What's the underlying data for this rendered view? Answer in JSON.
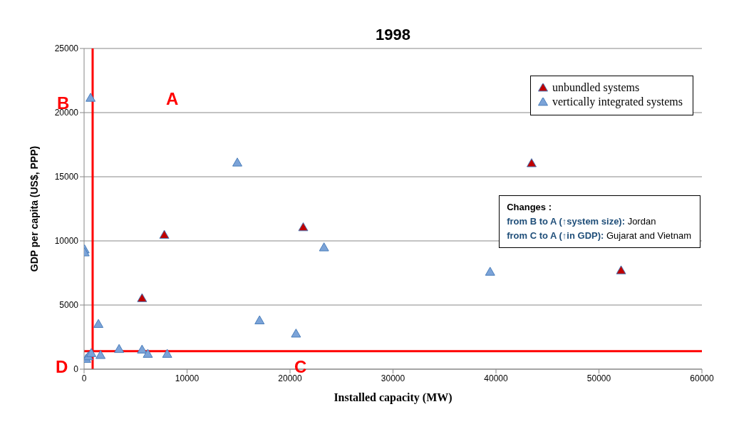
{
  "chart_data": {
    "type": "scatter",
    "title": "1998",
    "xlabel": "Installed capacity (MW)",
    "ylabel": "GDP per capita (US$, PPP)",
    "xlim": [
      0,
      60000
    ],
    "xticks": [
      0,
      10000,
      20000,
      30000,
      40000,
      50000,
      60000
    ],
    "ylim": [
      0,
      25000
    ],
    "yticks": [
      0,
      5000,
      10000,
      15000,
      20000,
      25000
    ],
    "grid": "y",
    "legend": "top right",
    "marker": "triangle",
    "series": [
      {
        "name": "unbundled systems",
        "color": "#c00000",
        "x": [
          5630,
          7790,
          21280,
          43460,
          52150
        ],
        "values": [
          5530,
          10470,
          11060,
          16050,
          7700
        ]
      },
      {
        "name": "vertically integrated systems",
        "color": "#7ba3d8",
        "x": [
          630,
          50,
          50,
          1390,
          200,
          400,
          700,
          1600,
          3400,
          5630,
          6190,
          8070,
          14880,
          17040,
          20580,
          23300,
          39430
        ],
        "values": [
          21150,
          9330,
          9100,
          3520,
          800,
          1000,
          1250,
          1100,
          1570,
          1520,
          1190,
          1190,
          16100,
          3800,
          2770,
          9490,
          7590
        ]
      }
    ],
    "ref_lines": [
      {
        "axis": "x",
        "value": 830,
        "color": "#ff0000"
      },
      {
        "axis": "y",
        "value": 1400,
        "color": "#ff0000"
      }
    ],
    "annotations": [
      "A",
      "B",
      "C",
      "D",
      "Changes :",
      "from B to A (↑system size): Jordan",
      "from C to A (↑in GDP): Gujarat and Vietnam"
    ]
  }
}
